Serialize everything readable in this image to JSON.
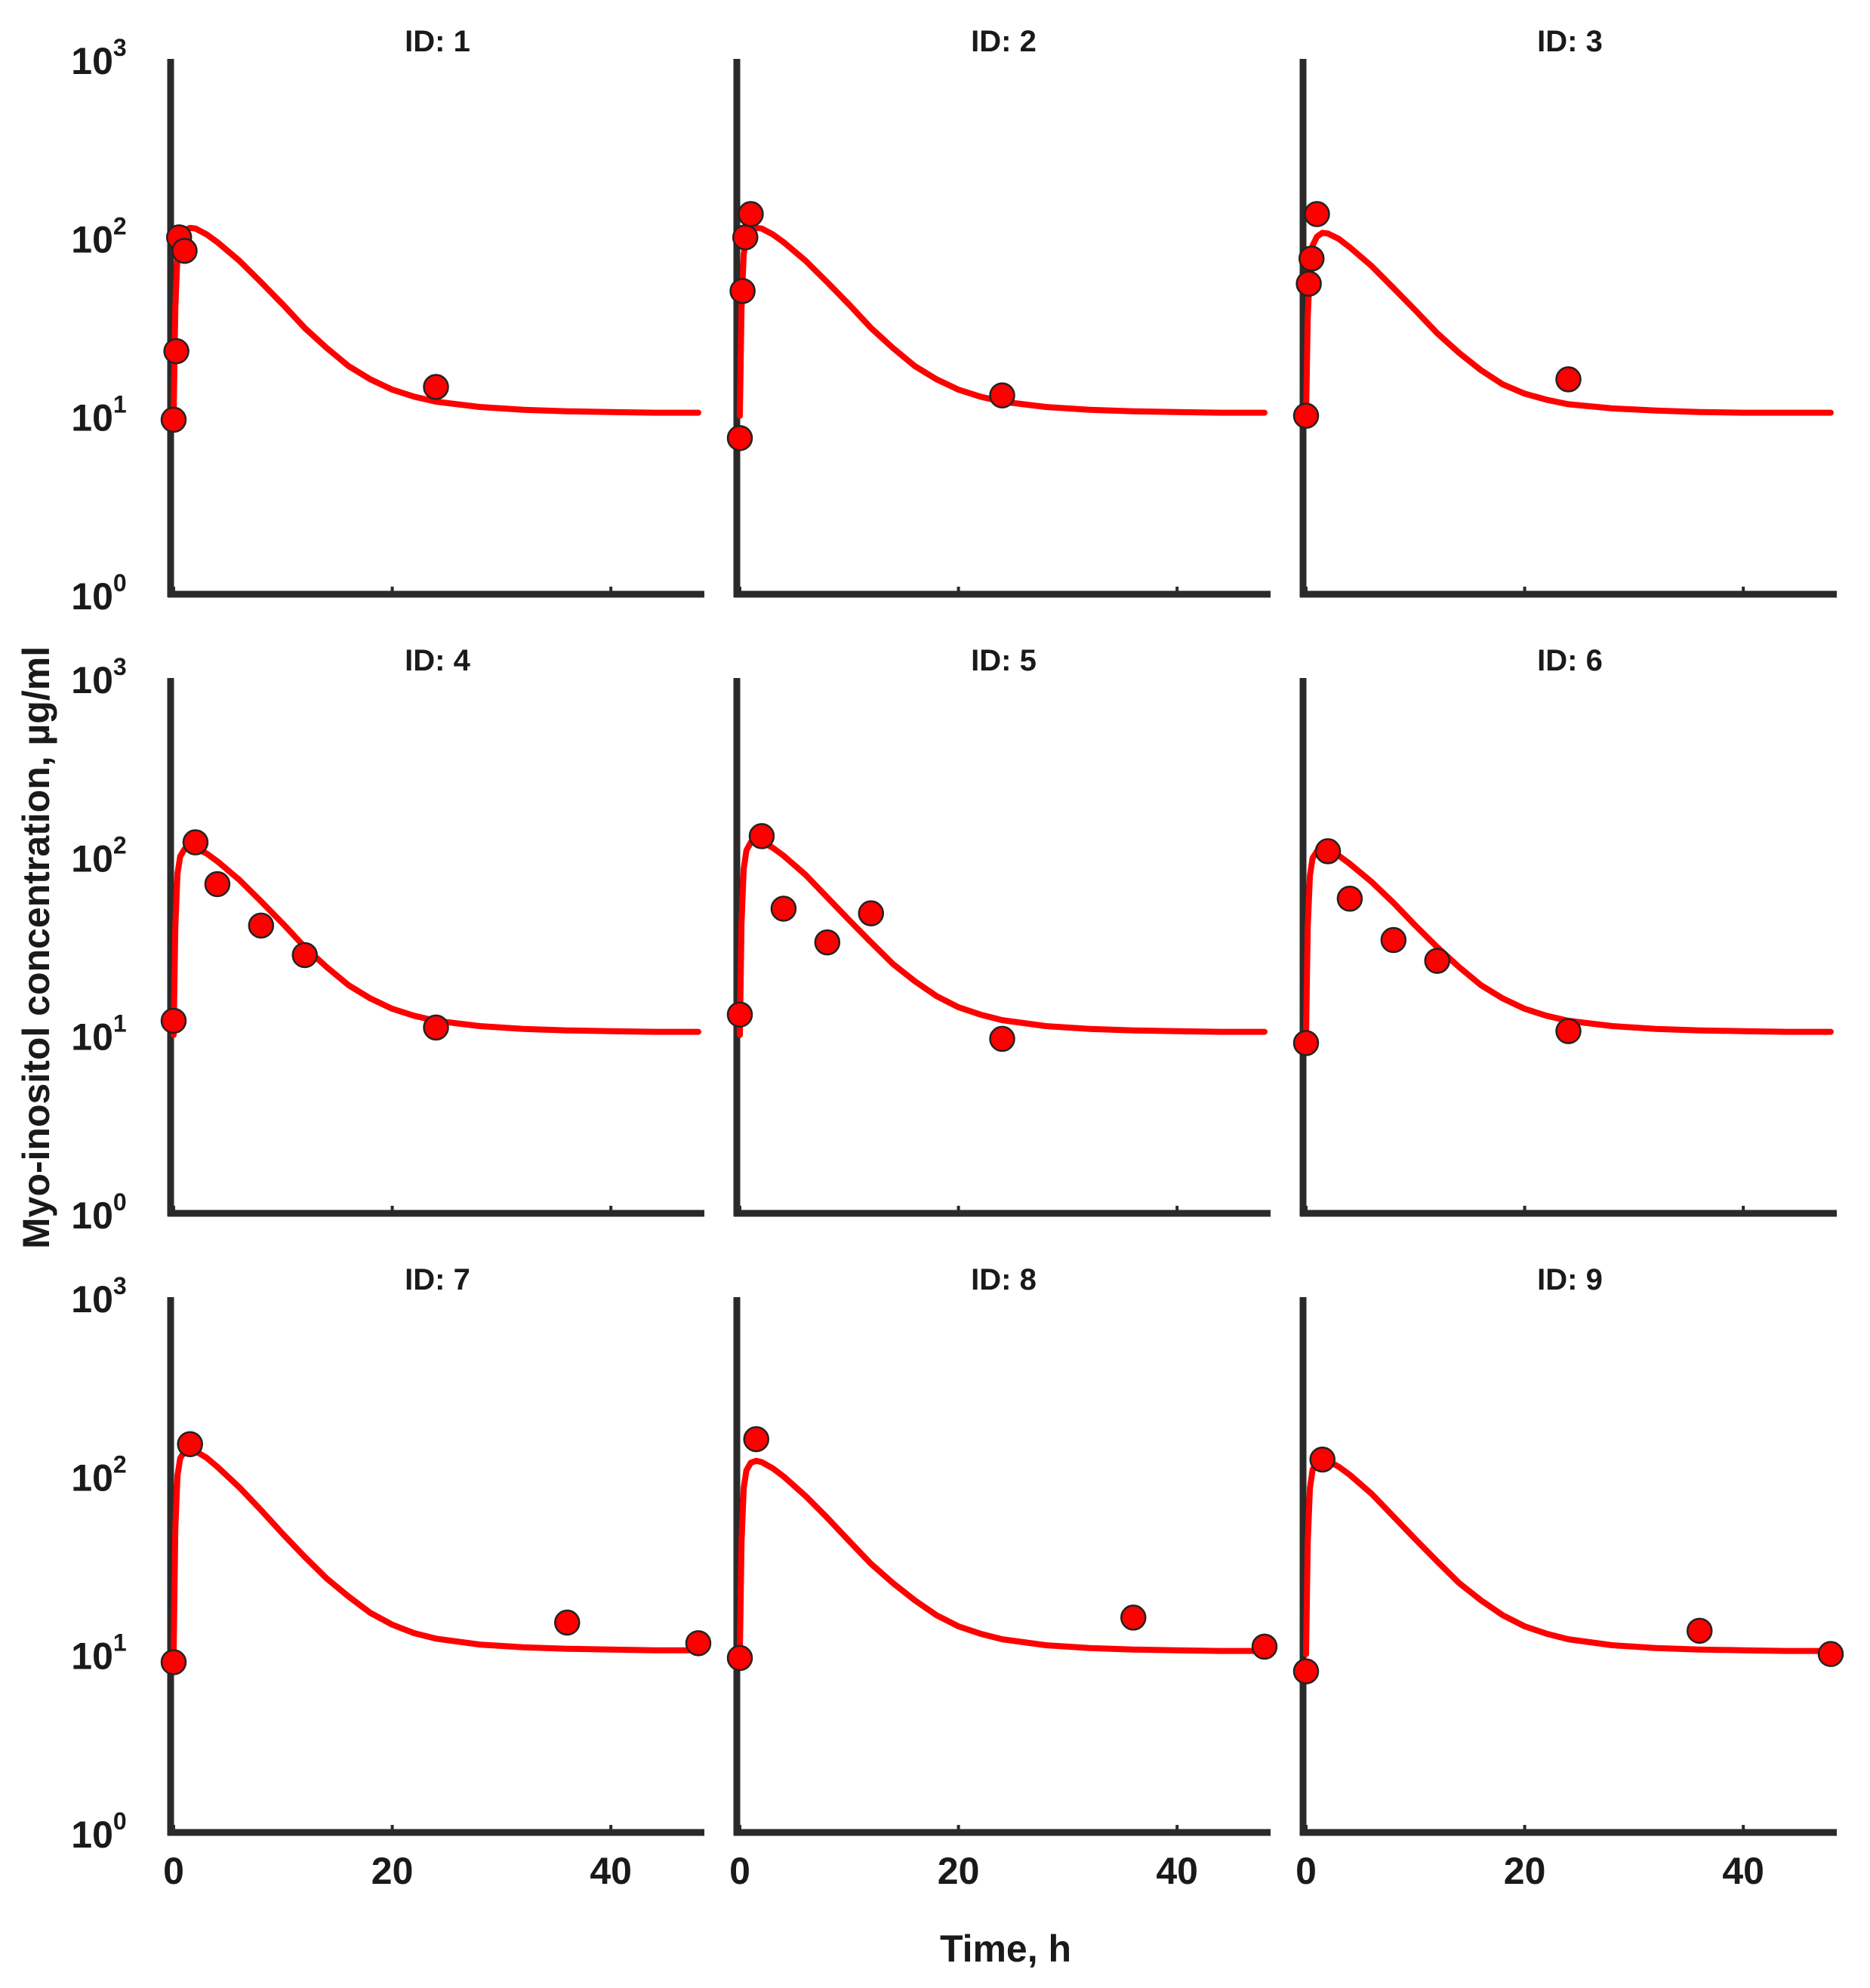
{
  "chart_data": {
    "type": "scatter",
    "layout": "3x3 grid of panels",
    "ylabel": "Myo-inositol concentration, µg/ml",
    "xlabel": "Time, h",
    "yscale": "log",
    "ylim": [
      1,
      1000
    ],
    "xlim": [
      0,
      48
    ],
    "y_tick_bases": [
      "10",
      "10",
      "10",
      "10"
    ],
    "y_tick_exponents": [
      "0",
      "1",
      "2",
      "3"
    ],
    "x_ticks": [
      "0",
      "20",
      "40"
    ],
    "grid": false,
    "point_color": "#ff0000",
    "line_color": "#ff0000",
    "axis_color": "#2a2a2a",
    "panels": [
      {
        "title": "ID: 1",
        "x_max": 48,
        "points": [
          [
            0,
            9.5
          ],
          [
            0.5,
            100
          ],
          [
            1,
            84
          ],
          [
            0.25,
            23
          ],
          [
            24,
            14.5
          ]
        ],
        "curve": [
          [
            0,
            10.0
          ],
          [
            0.15,
            40
          ],
          [
            0.35,
            80
          ],
          [
            0.6,
            100
          ],
          [
            1.0,
            110
          ],
          [
            1.5,
            113
          ],
          [
            2,
            112
          ],
          [
            3,
            104
          ],
          [
            4,
            94
          ],
          [
            6,
            74
          ],
          [
            8,
            56
          ],
          [
            10,
            42
          ],
          [
            12,
            31
          ],
          [
            14,
            24
          ],
          [
            16,
            19
          ],
          [
            18,
            16
          ],
          [
            20,
            14
          ],
          [
            22,
            12.8
          ],
          [
            24,
            12
          ],
          [
            28,
            11.2
          ],
          [
            32,
            10.8
          ],
          [
            36,
            10.6
          ],
          [
            40,
            10.5
          ],
          [
            44,
            10.4
          ],
          [
            48,
            10.4
          ]
        ]
      },
      {
        "title": "ID: 2",
        "x_max": 48,
        "points": [
          [
            0,
            7.5
          ],
          [
            0.25,
            50
          ],
          [
            0.5,
            100
          ],
          [
            1,
            135
          ],
          [
            24,
            13
          ]
        ],
        "curve": [
          [
            0,
            10.0
          ],
          [
            0.15,
            40
          ],
          [
            0.35,
            80
          ],
          [
            0.6,
            100
          ],
          [
            1.0,
            110
          ],
          [
            1.5,
            113
          ],
          [
            2,
            112
          ],
          [
            3,
            104
          ],
          [
            4,
            94
          ],
          [
            6,
            74
          ],
          [
            8,
            56
          ],
          [
            10,
            42
          ],
          [
            12,
            31
          ],
          [
            14,
            24
          ],
          [
            16,
            19
          ],
          [
            18,
            16
          ],
          [
            20,
            14
          ],
          [
            22,
            12.8
          ],
          [
            24,
            12
          ],
          [
            28,
            11.2
          ],
          [
            32,
            10.8
          ],
          [
            36,
            10.6
          ],
          [
            40,
            10.5
          ],
          [
            44,
            10.4
          ],
          [
            48,
            10.4
          ]
        ]
      },
      {
        "title": "ID: 3",
        "x_max": 48,
        "points": [
          [
            0,
            10
          ],
          [
            0.25,
            55
          ],
          [
            0.5,
            76
          ],
          [
            1,
            135
          ],
          [
            24,
            16
          ]
        ],
        "curve": [
          [
            0,
            10.0
          ],
          [
            0.15,
            35
          ],
          [
            0.35,
            70
          ],
          [
            0.6,
            90
          ],
          [
            1.0,
            101
          ],
          [
            1.5,
            106
          ],
          [
            2,
            105
          ],
          [
            3,
            98
          ],
          [
            4,
            88
          ],
          [
            6,
            69
          ],
          [
            8,
            52
          ],
          [
            10,
            39
          ],
          [
            12,
            29
          ],
          [
            14,
            22.5
          ],
          [
            16,
            18
          ],
          [
            18,
            15
          ],
          [
            20,
            13.3
          ],
          [
            22,
            12.3
          ],
          [
            24,
            11.6
          ],
          [
            28,
            11
          ],
          [
            32,
            10.7
          ],
          [
            36,
            10.5
          ],
          [
            40,
            10.4
          ],
          [
            44,
            10.4
          ],
          [
            48,
            10.4
          ]
        ]
      },
      {
        "title": "ID: 4",
        "x_max": 48,
        "points": [
          [
            0,
            12
          ],
          [
            2,
            120
          ],
          [
            4,
            70
          ],
          [
            8,
            41
          ],
          [
            12,
            28
          ],
          [
            24,
            11
          ]
        ],
        "curve": [
          [
            0,
            10.0
          ],
          [
            0.15,
            40
          ],
          [
            0.35,
            80
          ],
          [
            0.6,
            100
          ],
          [
            1.0,
            110
          ],
          [
            1.5,
            113
          ],
          [
            2,
            112
          ],
          [
            3,
            104
          ],
          [
            4,
            94
          ],
          [
            6,
            74
          ],
          [
            8,
            56
          ],
          [
            10,
            42
          ],
          [
            12,
            31
          ],
          [
            14,
            24
          ],
          [
            16,
            19
          ],
          [
            18,
            16
          ],
          [
            20,
            14
          ],
          [
            22,
            12.8
          ],
          [
            24,
            12
          ],
          [
            28,
            11.2
          ],
          [
            32,
            10.8
          ],
          [
            36,
            10.6
          ],
          [
            40,
            10.5
          ],
          [
            44,
            10.4
          ],
          [
            48,
            10.4
          ]
        ]
      },
      {
        "title": "ID: 5",
        "x_max": 48,
        "points": [
          [
            0,
            13
          ],
          [
            2,
            130
          ],
          [
            4,
            51
          ],
          [
            8,
            33
          ],
          [
            12,
            48
          ],
          [
            24,
            9.5
          ]
        ],
        "curve": [
          [
            0,
            10.0
          ],
          [
            0.15,
            42
          ],
          [
            0.35,
            85
          ],
          [
            0.6,
            108
          ],
          [
            1.0,
            120
          ],
          [
            1.5,
            123
          ],
          [
            2,
            121
          ],
          [
            3,
            112
          ],
          [
            4,
            101
          ],
          [
            6,
            79
          ],
          [
            8,
            59
          ],
          [
            10,
            44
          ],
          [
            12,
            33
          ],
          [
            14,
            25
          ],
          [
            16,
            20
          ],
          [
            18,
            16.5
          ],
          [
            20,
            14.3
          ],
          [
            22,
            13
          ],
          [
            24,
            12.1
          ],
          [
            28,
            11.2
          ],
          [
            32,
            10.8
          ],
          [
            36,
            10.6
          ],
          [
            40,
            10.5
          ],
          [
            44,
            10.4
          ],
          [
            48,
            10.4
          ]
        ]
      },
      {
        "title": "ID: 6",
        "x_max": 48,
        "points": [
          [
            0,
            9
          ],
          [
            2,
            107
          ],
          [
            4,
            58
          ],
          [
            8,
            34
          ],
          [
            12,
            26
          ],
          [
            24,
            10.5
          ]
        ],
        "curve": [
          [
            0,
            10.0
          ],
          [
            0.15,
            40
          ],
          [
            0.35,
            78
          ],
          [
            0.6,
            98
          ],
          [
            1.0,
            107
          ],
          [
            1.5,
            110
          ],
          [
            2,
            109
          ],
          [
            3,
            101
          ],
          [
            4,
            91
          ],
          [
            6,
            72
          ],
          [
            8,
            55
          ],
          [
            10,
            41
          ],
          [
            12,
            31
          ],
          [
            14,
            24
          ],
          [
            16,
            19
          ],
          [
            18,
            16
          ],
          [
            20,
            14
          ],
          [
            22,
            12.8
          ],
          [
            24,
            12
          ],
          [
            28,
            11.2
          ],
          [
            32,
            10.8
          ],
          [
            36,
            10.6
          ],
          [
            40,
            10.5
          ],
          [
            44,
            10.4
          ],
          [
            48,
            10.4
          ]
        ]
      },
      {
        "title": "ID: 7",
        "x_max": 48,
        "points": [
          [
            0,
            9
          ],
          [
            1.5,
            150
          ],
          [
            36,
            15
          ],
          [
            48,
            11.5
          ]
        ],
        "curve": [
          [
            0,
            10.0
          ],
          [
            0.15,
            50
          ],
          [
            0.35,
            100
          ],
          [
            0.6,
            125
          ],
          [
            1.0,
            137
          ],
          [
            1.5,
            140
          ],
          [
            2,
            137
          ],
          [
            3,
            126
          ],
          [
            4,
            112
          ],
          [
            6,
            86
          ],
          [
            8,
            64
          ],
          [
            10,
            47
          ],
          [
            12,
            35
          ],
          [
            14,
            26.5
          ],
          [
            16,
            21
          ],
          [
            18,
            17
          ],
          [
            20,
            14.6
          ],
          [
            22,
            13.1
          ],
          [
            24,
            12.2
          ],
          [
            28,
            11.3
          ],
          [
            32,
            10.9
          ],
          [
            36,
            10.7
          ],
          [
            40,
            10.6
          ],
          [
            44,
            10.5
          ],
          [
            48,
            10.5
          ]
        ]
      },
      {
        "title": "ID: 8",
        "x_max": 48,
        "points": [
          [
            0,
            9.5
          ],
          [
            1.5,
            160
          ],
          [
            36,
            16
          ],
          [
            48,
            11
          ]
        ],
        "curve": [
          [
            0,
            10.0
          ],
          [
            0.15,
            42
          ],
          [
            0.35,
            85
          ],
          [
            0.6,
            107
          ],
          [
            1.0,
            118
          ],
          [
            1.5,
            121
          ],
          [
            2,
            119
          ],
          [
            3,
            110
          ],
          [
            4,
            99
          ],
          [
            6,
            77
          ],
          [
            8,
            58
          ],
          [
            10,
            43
          ],
          [
            12,
            32
          ],
          [
            14,
            25
          ],
          [
            16,
            20
          ],
          [
            18,
            16.5
          ],
          [
            20,
            14.3
          ],
          [
            22,
            13
          ],
          [
            24,
            12.1
          ],
          [
            28,
            11.2
          ],
          [
            32,
            10.8
          ],
          [
            36,
            10.6
          ],
          [
            40,
            10.5
          ],
          [
            44,
            10.4
          ],
          [
            48,
            10.4
          ]
        ]
      },
      {
        "title": "ID: 9",
        "x_max": 48,
        "points": [
          [
            0,
            8
          ],
          [
            1.5,
            123
          ],
          [
            36,
            13.5
          ],
          [
            48,
            10
          ]
        ],
        "curve": [
          [
            0,
            10.0
          ],
          [
            0.15,
            42
          ],
          [
            0.35,
            85
          ],
          [
            0.6,
            108
          ],
          [
            1.0,
            120
          ],
          [
            1.5,
            123
          ],
          [
            2,
            121
          ],
          [
            3,
            112
          ],
          [
            4,
            101
          ],
          [
            6,
            79
          ],
          [
            8,
            59
          ],
          [
            10,
            44
          ],
          [
            12,
            33
          ],
          [
            14,
            25
          ],
          [
            16,
            20
          ],
          [
            18,
            16.5
          ],
          [
            20,
            14.3
          ],
          [
            22,
            13
          ],
          [
            24,
            12.1
          ],
          [
            28,
            11.2
          ],
          [
            32,
            10.8
          ],
          [
            36,
            10.6
          ],
          [
            40,
            10.5
          ],
          [
            44,
            10.4
          ],
          [
            48,
            10.4
          ]
        ]
      }
    ]
  }
}
